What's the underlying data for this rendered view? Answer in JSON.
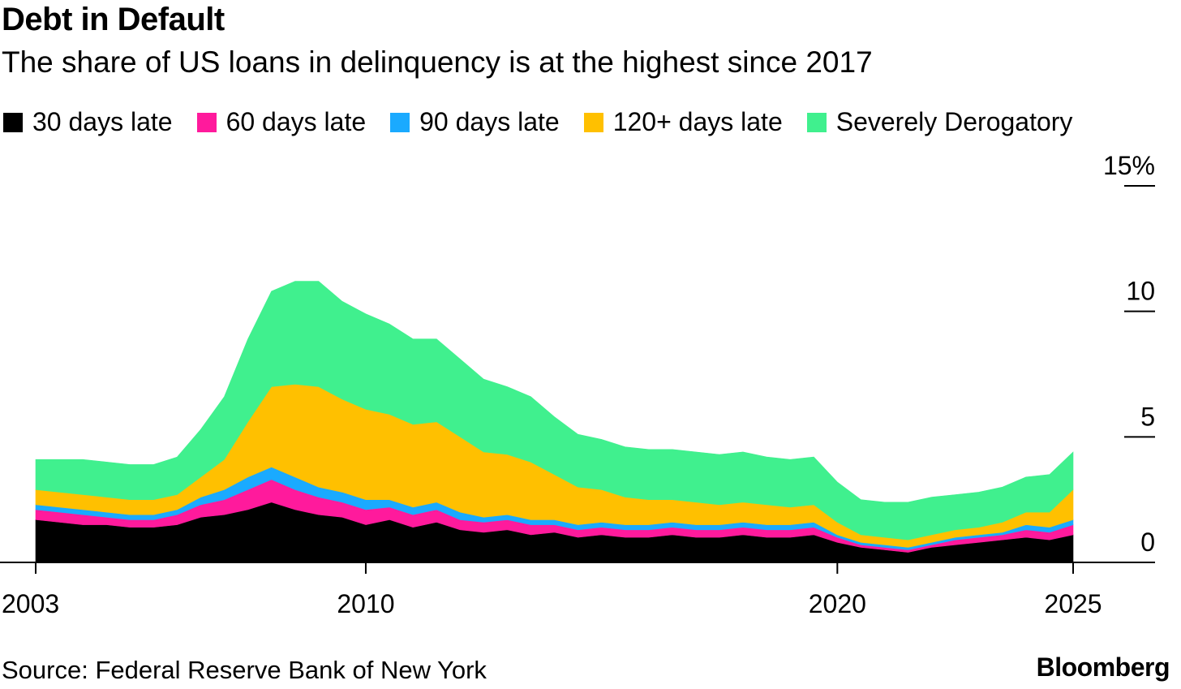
{
  "header": {
    "title": "Debt in Default",
    "subtitle": "The share of US loans in delinquency is at the highest since 2017"
  },
  "legend": {
    "items": [
      {
        "label": "30 days late",
        "color": "#000000"
      },
      {
        "label": "60 days late",
        "color": "#ff1a9c"
      },
      {
        "label": "90 days late",
        "color": "#1aaaff"
      },
      {
        "label": "120+ days late",
        "color": "#ffc000"
      },
      {
        "label": "Severely Derogatory",
        "color": "#40f08e"
      }
    ]
  },
  "footer": {
    "source": "Source: Federal Reserve Bank of New York",
    "brand": "Bloomberg"
  },
  "chart_data": {
    "type": "area",
    "stacked": true,
    "x": [
      2003.0,
      2003.5,
      2004.0,
      2004.5,
      2005.0,
      2005.5,
      2006.0,
      2006.5,
      2007.0,
      2007.5,
      2008.0,
      2008.5,
      2009.0,
      2009.5,
      2010.0,
      2010.5,
      2011.0,
      2011.5,
      2012.0,
      2012.5,
      2013.0,
      2013.5,
      2014.0,
      2014.5,
      2015.0,
      2015.5,
      2016.0,
      2016.5,
      2017.0,
      2017.5,
      2018.0,
      2018.5,
      2019.0,
      2019.5,
      2020.0,
      2020.5,
      2021.0,
      2021.5,
      2022.0,
      2022.5,
      2023.0,
      2023.5,
      2024.0,
      2024.5,
      2025.0
    ],
    "series": [
      {
        "name": "30 days late",
        "color": "#000000",
        "values": [
          1.7,
          1.6,
          1.5,
          1.5,
          1.4,
          1.4,
          1.5,
          1.8,
          1.9,
          2.1,
          2.4,
          2.1,
          1.9,
          1.8,
          1.5,
          1.7,
          1.4,
          1.6,
          1.3,
          1.2,
          1.3,
          1.1,
          1.2,
          1.0,
          1.1,
          1.0,
          1.0,
          1.1,
          1.0,
          1.0,
          1.1,
          1.0,
          1.0,
          1.1,
          0.8,
          0.6,
          0.5,
          0.4,
          0.6,
          0.7,
          0.8,
          0.9,
          1.0,
          0.9,
          1.1
        ]
      },
      {
        "name": "60 days late",
        "color": "#ff1a9c",
        "values": [
          0.4,
          0.4,
          0.4,
          0.3,
          0.3,
          0.3,
          0.4,
          0.5,
          0.6,
          0.8,
          0.9,
          0.8,
          0.7,
          0.6,
          0.6,
          0.5,
          0.5,
          0.5,
          0.4,
          0.4,
          0.4,
          0.4,
          0.3,
          0.3,
          0.3,
          0.3,
          0.3,
          0.3,
          0.3,
          0.3,
          0.3,
          0.3,
          0.3,
          0.3,
          0.2,
          0.1,
          0.1,
          0.1,
          0.1,
          0.2,
          0.2,
          0.2,
          0.3,
          0.3,
          0.4
        ]
      },
      {
        "name": "90 days late",
        "color": "#1aaaff",
        "values": [
          0.2,
          0.2,
          0.2,
          0.2,
          0.2,
          0.2,
          0.2,
          0.3,
          0.4,
          0.5,
          0.5,
          0.5,
          0.4,
          0.4,
          0.4,
          0.3,
          0.3,
          0.3,
          0.3,
          0.2,
          0.2,
          0.2,
          0.2,
          0.2,
          0.2,
          0.2,
          0.2,
          0.2,
          0.2,
          0.2,
          0.2,
          0.2,
          0.2,
          0.2,
          0.1,
          0.1,
          0.1,
          0.1,
          0.1,
          0.1,
          0.1,
          0.1,
          0.2,
          0.2,
          0.2
        ]
      },
      {
        "name": "120+ days late",
        "color": "#ffc000",
        "values": [
          0.6,
          0.6,
          0.6,
          0.6,
          0.6,
          0.6,
          0.6,
          0.8,
          1.2,
          2.2,
          3.2,
          3.7,
          4.0,
          3.7,
          3.6,
          3.4,
          3.3,
          3.2,
          3.0,
          2.6,
          2.4,
          2.3,
          1.8,
          1.5,
          1.3,
          1.1,
          1.0,
          0.9,
          0.9,
          0.8,
          0.8,
          0.8,
          0.7,
          0.7,
          0.5,
          0.3,
          0.3,
          0.3,
          0.3,
          0.3,
          0.3,
          0.4,
          0.5,
          0.6,
          1.2
        ]
      },
      {
        "name": "Severely Derogatory",
        "color": "#40f08e",
        "values": [
          1.2,
          1.3,
          1.4,
          1.4,
          1.4,
          1.4,
          1.5,
          1.9,
          2.5,
          3.3,
          3.8,
          4.1,
          4.2,
          3.9,
          3.8,
          3.6,
          3.4,
          3.3,
          3.1,
          2.9,
          2.7,
          2.6,
          2.3,
          2.1,
          2.0,
          2.0,
          2.0,
          2.0,
          2.0,
          2.0,
          2.0,
          1.9,
          1.9,
          1.9,
          1.6,
          1.4,
          1.4,
          1.5,
          1.5,
          1.4,
          1.4,
          1.4,
          1.4,
          1.5,
          1.5
        ]
      }
    ],
    "ylim": [
      0,
      15
    ],
    "y_ticks": [
      0,
      5,
      10,
      15
    ],
    "y_tick_labels": [
      "0",
      "5",
      "10",
      "15%"
    ],
    "x_ticks": [
      2003,
      2010,
      2020,
      2025
    ],
    "x_tick_labels": [
      "2003",
      "2010",
      "2020",
      "2025"
    ],
    "y_axis_side": "right",
    "grid": false,
    "legend_position": "top"
  }
}
